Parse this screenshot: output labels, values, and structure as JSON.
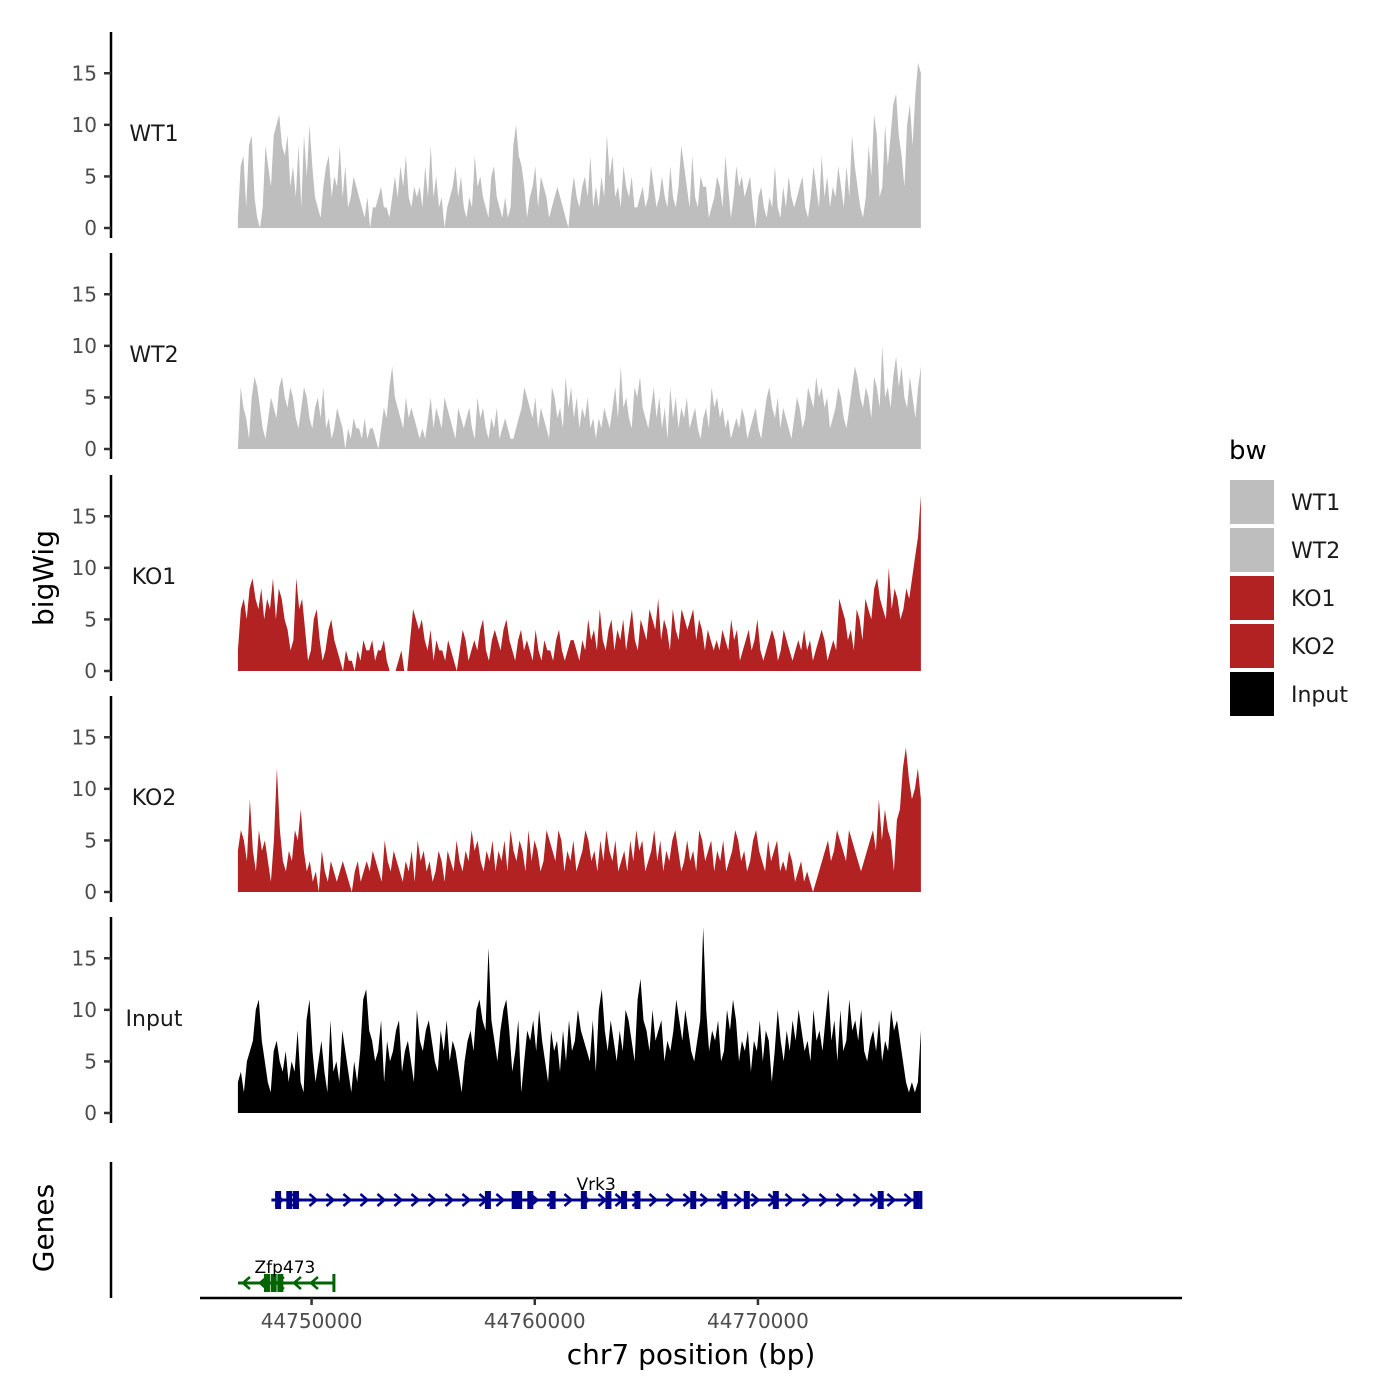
{
  "chart_data": {
    "type": "area",
    "title": "",
    "xlabel": "chr7 position (bp)",
    "ylabel": "bigWig",
    "genes_label": "Genes",
    "xlim": [
      44745000,
      44789000
    ],
    "x_ticks": [
      44750000,
      44760000,
      44770000
    ],
    "x_tick_labels": [
      "44750000",
      "44760000",
      "44770000"
    ],
    "ylim": [
      0,
      19
    ],
    "y_ticks": [
      0,
      5,
      10,
      15
    ],
    "y_tick_labels": [
      "0",
      "5",
      "10",
      "15"
    ],
    "x_start": 44746700,
    "x_end": 44777300,
    "legend": {
      "title": "bw",
      "position": "right",
      "entries": [
        {
          "label": "WT1",
          "color": "#bebebe"
        },
        {
          "label": "WT2",
          "color": "#bebebe"
        },
        {
          "label": "KO1",
          "color": "#b22222"
        },
        {
          "label": "KO2",
          "color": "#b22222"
        },
        {
          "label": "Input",
          "color": "#000000"
        }
      ]
    },
    "series": [
      {
        "name": "WT1",
        "color": "#bebebe",
        "values": [
          1,
          6,
          7,
          2,
          8,
          9,
          3,
          1,
          0,
          2,
          8,
          6,
          4,
          9,
          10,
          11,
          8,
          7,
          9,
          4,
          6,
          3,
          8,
          2,
          9,
          5,
          10,
          6,
          3,
          2,
          1,
          4,
          6,
          7,
          3,
          5,
          4,
          8,
          3,
          6,
          2,
          3,
          5,
          4,
          3,
          2,
          1,
          3,
          0,
          2,
          2,
          3,
          4,
          2,
          2,
          1,
          3,
          5,
          3,
          6,
          4,
          7,
          3,
          2,
          4,
          3,
          4,
          2,
          6,
          3,
          8,
          3,
          5,
          2,
          3,
          0,
          2,
          3,
          4,
          6,
          3,
          5,
          2,
          1,
          3,
          2,
          7,
          4,
          5,
          3,
          2,
          1,
          5,
          6,
          3,
          2,
          1,
          3,
          1,
          2,
          8,
          10,
          7,
          6,
          4,
          1,
          3,
          4,
          6,
          2,
          5,
          4,
          3,
          1,
          2,
          3,
          4,
          3,
          2,
          1,
          0,
          3,
          5,
          3,
          2,
          4,
          5,
          3,
          7,
          2,
          4,
          2,
          5,
          3,
          9,
          5,
          7,
          3,
          4,
          2,
          6,
          4,
          3,
          5,
          2,
          2,
          3,
          4,
          2,
          3,
          6,
          4,
          2,
          3,
          5,
          3,
          2,
          6,
          3,
          2,
          4,
          8,
          6,
          4,
          2,
          7,
          3,
          2,
          5,
          4,
          4,
          1,
          2,
          3,
          5,
          4,
          2,
          7,
          4,
          1,
          3,
          6,
          4,
          5,
          3,
          4,
          5,
          2,
          0,
          3,
          4,
          2,
          1,
          3,
          2,
          6,
          2,
          1,
          4,
          2,
          5,
          3,
          2,
          3,
          4,
          5,
          2,
          1,
          3,
          6,
          4,
          2,
          7,
          3,
          5,
          2,
          4,
          3,
          6,
          4,
          2,
          6,
          3,
          9,
          6,
          4,
          2,
          1,
          3,
          8,
          5,
          11,
          9,
          3,
          4,
          10,
          6,
          9,
          12,
          13,
          9,
          7,
          4,
          10,
          12,
          8,
          13,
          16,
          15
        ]
      },
      {
        "name": "WT2",
        "color": "#bebebe",
        "values": [
          0,
          6,
          4,
          3,
          1,
          5,
          7,
          6,
          4,
          2,
          1,
          3,
          5,
          4,
          3,
          6,
          7,
          5,
          4,
          6,
          5,
          3,
          2,
          4,
          6,
          5,
          3,
          2,
          4,
          5,
          3,
          6,
          2,
          3,
          1,
          2,
          4,
          3,
          2,
          0,
          2,
          1,
          3,
          2,
          2,
          1,
          3,
          1,
          2,
          2,
          1,
          0,
          2,
          4,
          3,
          6,
          8,
          5,
          4,
          3,
          2,
          5,
          3,
          4,
          3,
          2,
          1,
          2,
          1,
          3,
          5,
          2,
          4,
          3,
          2,
          5,
          4,
          3,
          2,
          1,
          4,
          3,
          2,
          3,
          4,
          2,
          1,
          5,
          3,
          4,
          2,
          1,
          3,
          2,
          4,
          1,
          2,
          3,
          2,
          1,
          1,
          2,
          3,
          4,
          6,
          5,
          4,
          3,
          5,
          2,
          4,
          3,
          2,
          1,
          6,
          5,
          3,
          4,
          2,
          7,
          4,
          6,
          3,
          5,
          2,
          4,
          3,
          5,
          2,
          3,
          1,
          3,
          2,
          4,
          3,
          2,
          4,
          6,
          3,
          8,
          4,
          5,
          3,
          2,
          6,
          5,
          7,
          4,
          3,
          2,
          4,
          6,
          3,
          5,
          2,
          4,
          1,
          6,
          3,
          5,
          2,
          4,
          3,
          5,
          2,
          3,
          4,
          2,
          1,
          3,
          4,
          2,
          6,
          4,
          5,
          3,
          4,
          2,
          3,
          1,
          2,
          3,
          2,
          4,
          3,
          1,
          2,
          3,
          4,
          2,
          1,
          3,
          5,
          6,
          4,
          3,
          5,
          2,
          4,
          3,
          2,
          1,
          3,
          5,
          4,
          2,
          3,
          6,
          5,
          4,
          7,
          5,
          6,
          4,
          5,
          2,
          3,
          4,
          6,
          5,
          3,
          2,
          4,
          6,
          8,
          7,
          5,
          4,
          6,
          5,
          3,
          7,
          6,
          4,
          10,
          5,
          6,
          4,
          7,
          9,
          6,
          8,
          5,
          4,
          7,
          5,
          3,
          6,
          8
        ]
      },
      {
        "name": "KO1",
        "color": "#b22222",
        "values": [
          2,
          6,
          7,
          5,
          8,
          9,
          7,
          6,
          8,
          5,
          7,
          6,
          9,
          5,
          8,
          7,
          5,
          4,
          2,
          3,
          9,
          6,
          7,
          4,
          1,
          2,
          5,
          6,
          3,
          1,
          2,
          4,
          5,
          3,
          2,
          1,
          0,
          2,
          1,
          1,
          0,
          2,
          1,
          3,
          2,
          2,
          3,
          1,
          2,
          2,
          3,
          1,
          0,
          -1,
          0,
          1,
          2,
          0,
          -1,
          3,
          6,
          5,
          4,
          5,
          3,
          2,
          4,
          1,
          3,
          2,
          2,
          1,
          3,
          2,
          1,
          0,
          2,
          4,
          3,
          1,
          2,
          3,
          2,
          4,
          5,
          2,
          1,
          3,
          4,
          3,
          2,
          4,
          5,
          3,
          2,
          1,
          3,
          4,
          2,
          3,
          2,
          1,
          4,
          2,
          1,
          3,
          2,
          2,
          1,
          3,
          4,
          2,
          1,
          2,
          3,
          3,
          2,
          1,
          3,
          2,
          5,
          3,
          4,
          2,
          6,
          3,
          2,
          4,
          5,
          2,
          4,
          3,
          5,
          2,
          4,
          6,
          3,
          2,
          5,
          4,
          3,
          6,
          5,
          4,
          7,
          3,
          5,
          4,
          2,
          6,
          4,
          3,
          6,
          5,
          4,
          5,
          6,
          3,
          5,
          4,
          2,
          4,
          3,
          2,
          3,
          2,
          4,
          3,
          2,
          5,
          3,
          4,
          1,
          2,
          3,
          4,
          2,
          3,
          5,
          2,
          1,
          2,
          3,
          4,
          3,
          1,
          2,
          4,
          3,
          2,
          1,
          2,
          3,
          2,
          4,
          2,
          3,
          1,
          2,
          3,
          4,
          3,
          1,
          2,
          3,
          2,
          7,
          6,
          5,
          3,
          4,
          2,
          6,
          5,
          3,
          7,
          6,
          5,
          8,
          9,
          7,
          6,
          5,
          10,
          6,
          8,
          7,
          5,
          6,
          8,
          7,
          9,
          11,
          13,
          17
        ]
      },
      {
        "name": "KO2",
        "color": "#b22222",
        "values": [
          4,
          6,
          5,
          3,
          9,
          4,
          2,
          6,
          4,
          5,
          3,
          1,
          5,
          12,
          6,
          3,
          2,
          4,
          3,
          6,
          5,
          8,
          4,
          2,
          3,
          1,
          2,
          0,
          4,
          2,
          1,
          3,
          2,
          1,
          2,
          3,
          2,
          1,
          0,
          2,
          3,
          1,
          2,
          3,
          2,
          4,
          3,
          2,
          1,
          5,
          3,
          2,
          4,
          3,
          2,
          1,
          3,
          2,
          4,
          1,
          5,
          3,
          4,
          2,
          3,
          1,
          2,
          4,
          3,
          1,
          4,
          3,
          2,
          5,
          3,
          2,
          4,
          3,
          6,
          4,
          5,
          3,
          2,
          4,
          3,
          5,
          2,
          4,
          3,
          5,
          2,
          6,
          4,
          3,
          5,
          4,
          2,
          6,
          3,
          5,
          4,
          2,
          3,
          6,
          5,
          4,
          3,
          6,
          5,
          2,
          4,
          3,
          5,
          2,
          3,
          4,
          6,
          5,
          3,
          4,
          2,
          5,
          3,
          6,
          4,
          3,
          5,
          2,
          3,
          4,
          2,
          5,
          3,
          6,
          4,
          5,
          2,
          3,
          4,
          6,
          3,
          5,
          2,
          4,
          3,
          5,
          6,
          4,
          2,
          3,
          5,
          3,
          4,
          2,
          6,
          5,
          3,
          4,
          5,
          2,
          4,
          3,
          5,
          2,
          3,
          4,
          6,
          5,
          3,
          4,
          2,
          3,
          5,
          6,
          4,
          3,
          2,
          5,
          3,
          4,
          5,
          2,
          3,
          2,
          4,
          3,
          1,
          2,
          3,
          1,
          2,
          1,
          0,
          1,
          2,
          3,
          4,
          5,
          3,
          4,
          6,
          5,
          4,
          3,
          6,
          5,
          4,
          3,
          2,
          3,
          4,
          5,
          6,
          4,
          9,
          5,
          8,
          6,
          5,
          2,
          7,
          8,
          12,
          14,
          11,
          9,
          10,
          12,
          9
        ]
      },
      {
        "name": "Input",
        "color": "#000000",
        "values": [
          3,
          4,
          2,
          5,
          6,
          7,
          10,
          11,
          7,
          5,
          3,
          2,
          6,
          7,
          5,
          4,
          6,
          3,
          5,
          4,
          8,
          3,
          2,
          9,
          11,
          6,
          3,
          5,
          7,
          4,
          2,
          9,
          4,
          5,
          3,
          8,
          6,
          4,
          2,
          5,
          3,
          6,
          11,
          12,
          8,
          7,
          5,
          6,
          9,
          3,
          7,
          5,
          6,
          8,
          9,
          4,
          6,
          7,
          5,
          3,
          10,
          7,
          6,
          8,
          9,
          7,
          5,
          4,
          8,
          6,
          9,
          5,
          7,
          6,
          4,
          2,
          5,
          7,
          8,
          6,
          10,
          11,
          9,
          8,
          16,
          9,
          7,
          5,
          8,
          10,
          11,
          8,
          4,
          6,
          9,
          2,
          5,
          8,
          7,
          9,
          6,
          10,
          7,
          5,
          3,
          8,
          6,
          7,
          4,
          8,
          5,
          9,
          6,
          7,
          10,
          8,
          7,
          6,
          5,
          9,
          4,
          10,
          12,
          8,
          6,
          9,
          7,
          5,
          8,
          6,
          10,
          9,
          7,
          5,
          11,
          13,
          9,
          8,
          6,
          10,
          7,
          8,
          9,
          5,
          7,
          6,
          8,
          11,
          9,
          7,
          10,
          8,
          6,
          5,
          7,
          9,
          18,
          10,
          6,
          8,
          7,
          9,
          5,
          6,
          10,
          8,
          11,
          9,
          5,
          7,
          6,
          8,
          4,
          7,
          6,
          9,
          5,
          8,
          7,
          3,
          6,
          10,
          7,
          5,
          8,
          6,
          9,
          7,
          10,
          8,
          6,
          7,
          5,
          10,
          7,
          8,
          6,
          9,
          12,
          7,
          9,
          5,
          10,
          6,
          7,
          11,
          8,
          9,
          7,
          10,
          6,
          5,
          7,
          8,
          6,
          9,
          5,
          7,
          6,
          10,
          8,
          9,
          7,
          5,
          3,
          2,
          3,
          2,
          3,
          8
        ]
      }
    ],
    "genes": [
      {
        "name": "Vrk3",
        "strand": "+",
        "color": "#00008b",
        "start": 44748200,
        "end": 44777300,
        "exons": [
          44748500,
          44749000,
          44749300,
          44757900,
          44759100,
          44759300,
          44759800,
          44760800,
          44762200,
          44763300,
          44764000,
          44764600,
          44767100,
          44768500,
          44769500,
          44770800,
          44775500,
          44777100
        ]
      },
      {
        "name": "Zfp473",
        "strand": "-",
        "color": "#006400",
        "start": 44746700,
        "end": 44751000,
        "exons": [
          44748000,
          44748300,
          44748600
        ]
      }
    ]
  }
}
